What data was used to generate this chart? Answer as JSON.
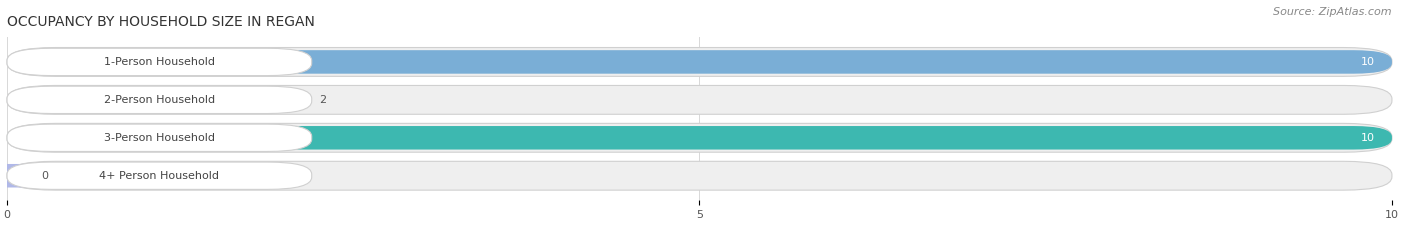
{
  "title": "OCCUPANCY BY HOUSEHOLD SIZE IN REGAN",
  "source": "Source: ZipAtlas.com",
  "categories": [
    "1-Person Household",
    "2-Person Household",
    "3-Person Household",
    "4+ Person Household"
  ],
  "values": [
    10,
    2,
    10,
    0
  ],
  "bar_colors": [
    "#7aaed6",
    "#c9a0c0",
    "#3db8b0",
    "#b0b8e8"
  ],
  "xlim": [
    0,
    10
  ],
  "xticks": [
    0,
    5,
    10
  ],
  "background_color": "#ffffff",
  "bar_background_color": "#efefef",
  "title_fontsize": 10,
  "source_fontsize": 8,
  "label_fontsize": 8,
  "value_fontsize": 8
}
